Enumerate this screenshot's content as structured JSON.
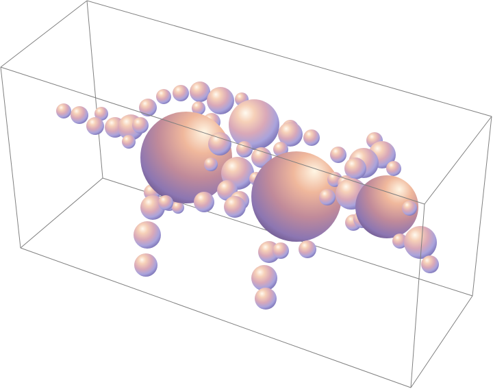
{
  "scene": {
    "subject": "sphere-animal-figure",
    "background": "#ffffff",
    "box_edge_color": "#7a7a7a",
    "sphere_gradient": {
      "highlight": "#fff7e8",
      "warm": "#e9a98f",
      "mid": "#c9a4c9",
      "cool": "#9fa6e2",
      "shadow": "#5a3e6a"
    }
  }
}
